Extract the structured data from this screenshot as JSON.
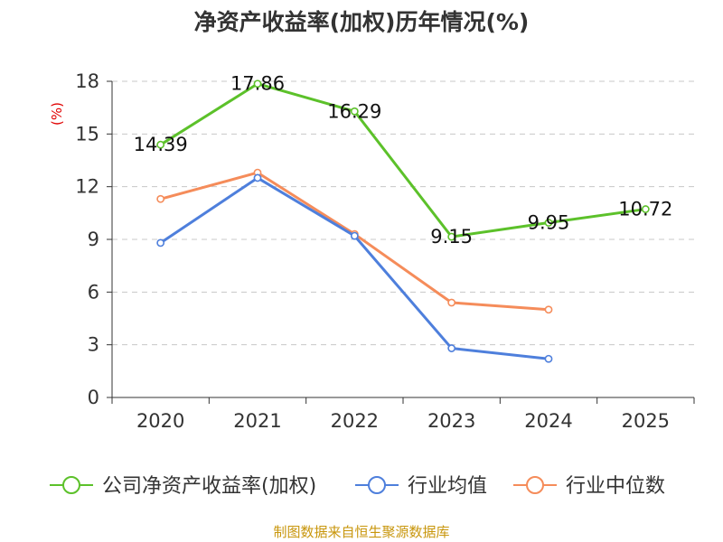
{
  "chart_data": {
    "type": "line",
    "title": "净资产收益率(加权)历年情况(%)",
    "ylabel": "(%)",
    "categories": [
      "2020",
      "2021",
      "2022",
      "2023",
      "2024",
      "2025"
    ],
    "ylim": [
      0,
      18
    ],
    "yticks": [
      "0",
      "3",
      "6",
      "9",
      "12",
      "15",
      "18"
    ],
    "grid": true,
    "legend_position": "bottom",
    "series": [
      {
        "name": "公司净资产收益率(加权)",
        "color": "#5cc12a",
        "values": [
          14.39,
          17.86,
          16.29,
          9.15,
          9.95,
          10.72
        ],
        "labels": [
          "14.39",
          "17.86",
          "16.29",
          "9.15",
          "9.95",
          "10.72"
        ]
      },
      {
        "name": "行业均值",
        "color": "#4e7fdc",
        "values": [
          8.8,
          12.5,
          9.2,
          2.8,
          2.2,
          null
        ]
      },
      {
        "name": "行业中位数",
        "color": "#f58c5a",
        "values": [
          11.3,
          12.8,
          9.3,
          5.4,
          5.0,
          null
        ]
      }
    ]
  },
  "source": "制图数据来自恒生聚源数据库"
}
